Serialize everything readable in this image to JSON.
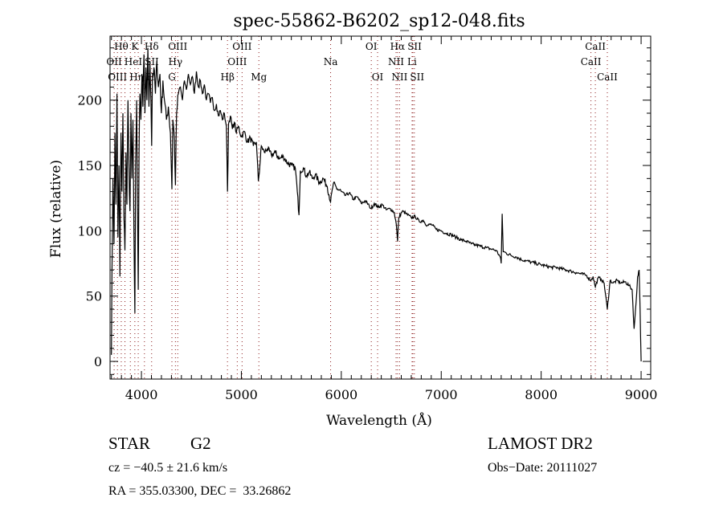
{
  "chart_data": {
    "type": "line",
    "title": "spec-55862-B6202_sp12-048.fits",
    "xlabel": "Wavelength (Å)",
    "ylabel": "Flux (relative)",
    "xlim": [
      3686,
      9096
    ],
    "ylim": [
      -13.5,
      249
    ],
    "xticks": [
      4000,
      5000,
      6000,
      7000,
      8000,
      9000
    ],
    "yticks": [
      0,
      50,
      100,
      150,
      200
    ],
    "grid": false,
    "line_color": "#000000",
    "marker_color": "#8b1a1a",
    "spectrum": [
      [
        3700,
        5
      ],
      [
        3705,
        70
      ],
      [
        3715,
        140
      ],
      [
        3725,
        90
      ],
      [
        3735,
        175
      ],
      [
        3745,
        120
      ],
      [
        3755,
        205
      ],
      [
        3765,
        95
      ],
      [
        3775,
        150
      ],
      [
        3785,
        65
      ],
      [
        3795,
        175
      ],
      [
        3805,
        130
      ],
      [
        3815,
        190
      ],
      [
        3825,
        110
      ],
      [
        3835,
        85
      ],
      [
        3845,
        160
      ],
      [
        3855,
        120
      ],
      [
        3865,
        200
      ],
      [
        3875,
        150
      ],
      [
        3885,
        115
      ],
      [
        3895,
        190
      ],
      [
        3905,
        140
      ],
      [
        3915,
        185
      ],
      [
        3925,
        100
      ],
      [
        3934,
        37
      ],
      [
        3942,
        150
      ],
      [
        3952,
        200
      ],
      [
        3960,
        120
      ],
      [
        3968,
        55
      ],
      [
        3976,
        160
      ],
      [
        3985,
        205
      ],
      [
        3995,
        185
      ],
      [
        4005,
        220
      ],
      [
        4015,
        195
      ],
      [
        4025,
        235
      ],
      [
        4035,
        190
      ],
      [
        4045,
        225
      ],
      [
        4055,
        200
      ],
      [
        4065,
        240
      ],
      [
        4075,
        195
      ],
      [
        4085,
        230
      ],
      [
        4095,
        200
      ],
      [
        4102,
        165
      ],
      [
        4110,
        215
      ],
      [
        4125,
        225
      ],
      [
        4140,
        205
      ],
      [
        4155,
        230
      ],
      [
        4170,
        210
      ],
      [
        4185,
        220
      ],
      [
        4200,
        190
      ],
      [
        4215,
        215
      ],
      [
        4230,
        200
      ],
      [
        4250,
        185
      ],
      [
        4270,
        195
      ],
      [
        4290,
        175
      ],
      [
        4305,
        132
      ],
      [
        4315,
        185
      ],
      [
        4330,
        170
      ],
      [
        4340,
        135
      ],
      [
        4352,
        190
      ],
      [
        4370,
        205
      ],
      [
        4390,
        210
      ],
      [
        4410,
        200
      ],
      [
        4430,
        215
      ],
      [
        4450,
        208
      ],
      [
        4470,
        220
      ],
      [
        4490,
        212
      ],
      [
        4510,
        218
      ],
      [
        4530,
        205
      ],
      [
        4550,
        222
      ],
      [
        4570,
        210
      ],
      [
        4590,
        215
      ],
      [
        4610,
        205
      ],
      [
        4630,
        212
      ],
      [
        4650,
        200
      ],
      [
        4670,
        205
      ],
      [
        4690,
        198
      ],
      [
        4710,
        202
      ],
      [
        4730,
        192
      ],
      [
        4750,
        197
      ],
      [
        4770,
        188
      ],
      [
        4790,
        192
      ],
      [
        4810,
        185
      ],
      [
        4830,
        190
      ],
      [
        4850,
        180
      ],
      [
        4861,
        130
      ],
      [
        4872,
        182
      ],
      [
        4890,
        188
      ],
      [
        4910,
        178
      ],
      [
        4930,
        183
      ],
      [
        4950,
        175
      ],
      [
        4970,
        180
      ],
      [
        5000,
        172
      ],
      [
        5030,
        176
      ],
      [
        5060,
        168
      ],
      [
        5090,
        171
      ],
      [
        5120,
        165
      ],
      [
        5150,
        168
      ],
      [
        5170,
        138
      ],
      [
        5185,
        150
      ],
      [
        5200,
        165
      ],
      [
        5230,
        160
      ],
      [
        5260,
        163
      ],
      [
        5300,
        158
      ],
      [
        5340,
        160
      ],
      [
        5380,
        155
      ],
      [
        5420,
        157
      ],
      [
        5460,
        152
      ],
      [
        5500,
        150
      ],
      [
        5540,
        148
      ],
      [
        5560,
        130
      ],
      [
        5577,
        112
      ],
      [
        5590,
        146
      ],
      [
        5620,
        148
      ],
      [
        5650,
        142
      ],
      [
        5680,
        145
      ],
      [
        5710,
        140
      ],
      [
        5740,
        143
      ],
      [
        5780,
        137
      ],
      [
        5820,
        140
      ],
      [
        5860,
        134
      ],
      [
        5893,
        122
      ],
      [
        5920,
        136
      ],
      [
        5960,
        132
      ],
      [
        6000,
        130
      ],
      [
        6040,
        127
      ],
      [
        6080,
        129
      ],
      [
        6120,
        124
      ],
      [
        6160,
        126
      ],
      [
        6200,
        121
      ],
      [
        6240,
        123
      ],
      [
        6280,
        119
      ],
      [
        6300,
        117
      ],
      [
        6330,
        121
      ],
      [
        6370,
        118
      ],
      [
        6410,
        120
      ],
      [
        6450,
        116
      ],
      [
        6490,
        117
      ],
      [
        6530,
        114
      ],
      [
        6550,
        105
      ],
      [
        6563,
        92
      ],
      [
        6575,
        110
      ],
      [
        6610,
        115
      ],
      [
        6650,
        113
      ],
      [
        6700,
        110
      ],
      [
        6740,
        111
      ],
      [
        6780,
        107
      ],
      [
        6820,
        108
      ],
      [
        6860,
        104
      ],
      [
        6900,
        105
      ],
      [
        6950,
        101
      ],
      [
        7000,
        100
      ],
      [
        7050,
        98
      ],
      [
        7100,
        97
      ],
      [
        7150,
        95
      ],
      [
        7200,
        93
      ],
      [
        7250,
        92
      ],
      [
        7300,
        90
      ],
      [
        7350,
        89
      ],
      [
        7400,
        88
      ],
      [
        7450,
        87
      ],
      [
        7500,
        86
      ],
      [
        7550,
        85
      ],
      [
        7590,
        80
      ],
      [
        7600,
        75
      ],
      [
        7610,
        113
      ],
      [
        7620,
        84
      ],
      [
        7650,
        83
      ],
      [
        7700,
        81
      ],
      [
        7750,
        80
      ],
      [
        7800,
        78
      ],
      [
        7850,
        77
      ],
      [
        7900,
        76
      ],
      [
        7950,
        75
      ],
      [
        8000,
        74
      ],
      [
        8050,
        73
      ],
      [
        8100,
        72
      ],
      [
        8150,
        72
      ],
      [
        8200,
        71
      ],
      [
        8250,
        70
      ],
      [
        8300,
        69
      ],
      [
        8350,
        68
      ],
      [
        8400,
        67
      ],
      [
        8450,
        66
      ],
      [
        8498,
        62
      ],
      [
        8520,
        65
      ],
      [
        8542,
        57
      ],
      [
        8570,
        64
      ],
      [
        8600,
        63
      ],
      [
        8630,
        60
      ],
      [
        8662,
        40
      ],
      [
        8690,
        62
      ],
      [
        8720,
        60
      ],
      [
        8760,
        62
      ],
      [
        8800,
        60
      ],
      [
        8840,
        61
      ],
      [
        8880,
        58
      ],
      [
        8910,
        55
      ],
      [
        8930,
        25
      ],
      [
        8950,
        45
      ],
      [
        8965,
        65
      ],
      [
        8980,
        70
      ],
      [
        8990,
        40
      ],
      [
        9000,
        0
      ]
    ],
    "line_markers": [
      {
        "label": "OII",
        "wavelength": 3727,
        "row": 1
      },
      {
        "label": "Hθ",
        "wavelength": 3798,
        "row": 0
      },
      {
        "label": "OIII",
        "wavelength": 3760,
        "row": 2
      },
      {
        "label": "Hη",
        "wavelength": 3835,
        "row": 2
      },
      {
        "label": "HeI",
        "wavelength": 3889,
        "row": 1
      },
      {
        "label": "K",
        "wavelength": 3934,
        "row": 0
      },
      {
        "label": "H",
        "wavelength": 3968,
        "row": 2
      },
      {
        "label": "SII",
        "wavelength": 4030,
        "row": 1
      },
      {
        "label": "Hδ",
        "wavelength": 4102,
        "row": 0
      },
      {
        "label": "G",
        "wavelength": 4305,
        "row": 2
      },
      {
        "label": "Hγ",
        "wavelength": 4340,
        "row": 1
      },
      {
        "label": "OIII",
        "wavelength": 4363,
        "row": 0
      },
      {
        "label": "Hβ",
        "wavelength": 4861,
        "row": 2
      },
      {
        "label": "OIII",
        "wavelength": 4959,
        "row": 1
      },
      {
        "label": "OIII",
        "wavelength": 5007,
        "row": 0
      },
      {
        "label": "Mg",
        "wavelength": 5175,
        "row": 2
      },
      {
        "label": "Na",
        "wavelength": 5893,
        "row": 1
      },
      {
        "label": "OI",
        "wavelength": 6300,
        "row": 0
      },
      {
        "label": "OI",
        "wavelength": 6363,
        "row": 2
      },
      {
        "label": "NII",
        "wavelength": 6548,
        "row": 1
      },
      {
        "label": "Hα",
        "wavelength": 6563,
        "row": 0
      },
      {
        "label": "NII",
        "wavelength": 6583,
        "row": 2
      },
      {
        "label": "Li",
        "wavelength": 6708,
        "row": 1
      },
      {
        "label": "SII",
        "wavelength": 6716,
        "row": 0
      },
      {
        "label": "SII",
        "wavelength": 6731,
        "row": 2
      },
      {
        "label": "CaII",
        "wavelength": 8498,
        "row": 1
      },
      {
        "label": "CaII",
        "wavelength": 8542,
        "row": 0
      },
      {
        "label": "CaII",
        "wavelength": 8662,
        "row": 2
      }
    ]
  },
  "info": {
    "object_class": "STAR",
    "subclass": "G2",
    "survey": "LAMOST DR2",
    "redshift_text": "cz = −40.5 ± 21.6 km/s",
    "obs_date": "Obs−Date: 20111027",
    "coords": "RA = 355.03300, DEC =  33.26862"
  }
}
